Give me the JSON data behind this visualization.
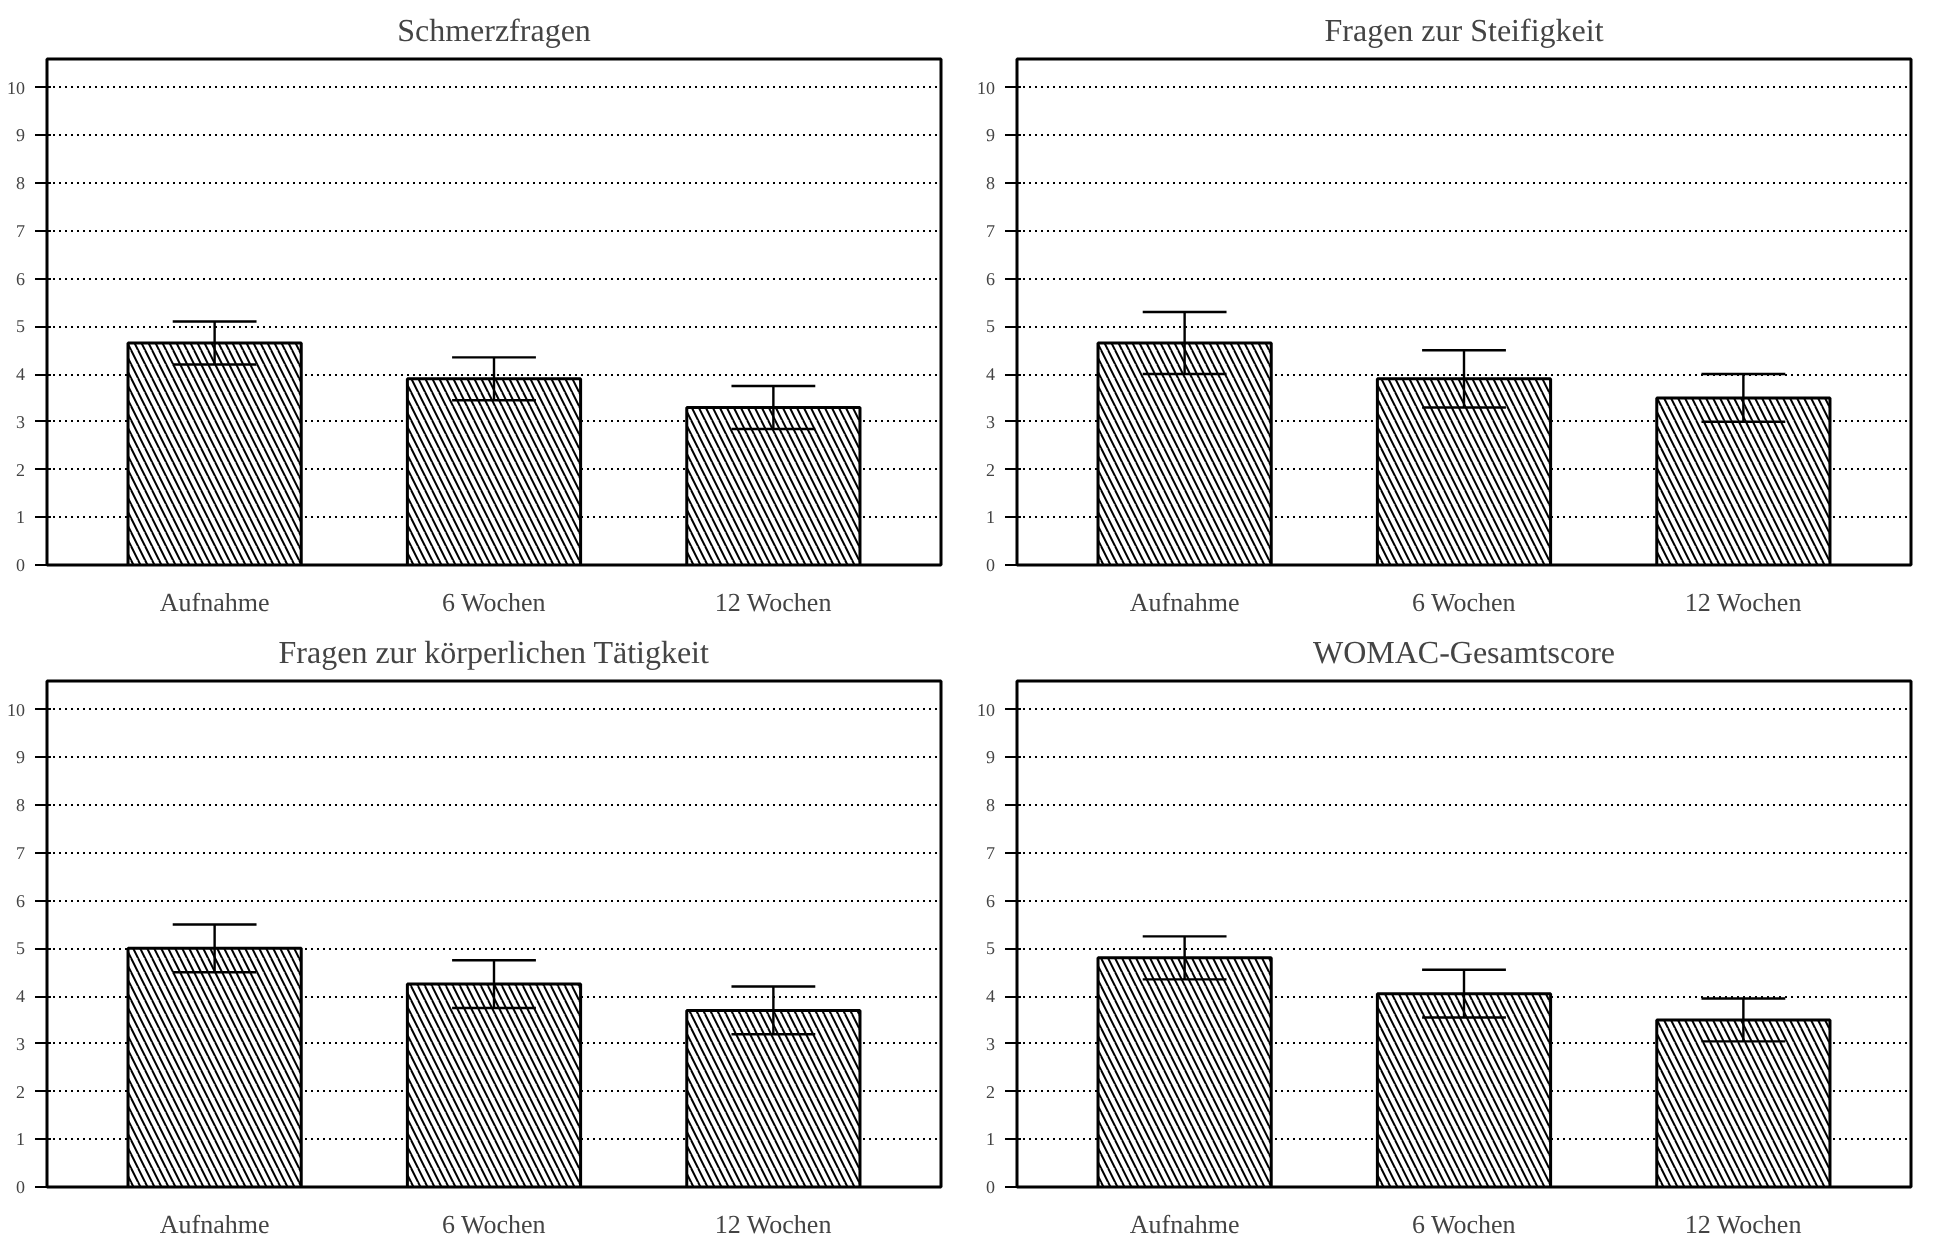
{
  "chart_data": [
    {
      "type": "bar",
      "title": "Schmerzfragen",
      "categories": [
        "Aufnahme",
        "6 Wochen",
        "12 Wochen"
      ],
      "values": [
        4.65,
        3.9,
        3.3
      ],
      "errors": [
        0.45,
        0.45,
        0.45
      ],
      "color": "#000000",
      "ylim": [
        0,
        10.6
      ],
      "yticks": [
        0,
        1,
        2,
        3,
        4,
        5,
        6,
        7,
        8,
        9,
        10
      ],
      "grid": "y",
      "legend": false
    },
    {
      "type": "bar",
      "title": "Fragen zur Steifigkeit",
      "categories": [
        "Aufnahme",
        "6 Wochen",
        "12 Wochen"
      ],
      "values": [
        4.65,
        3.9,
        3.5
      ],
      "errors": [
        0.65,
        0.6,
        0.5
      ],
      "color": "#000000",
      "ylim": [
        0,
        10.6
      ],
      "yticks": [
        0,
        1,
        2,
        3,
        4,
        5,
        6,
        7,
        8,
        9,
        10
      ],
      "grid": "y",
      "legend": false
    },
    {
      "type": "bar",
      "title": "Fragen zur körperlichen Tätigkeit",
      "categories": [
        "Aufnahme",
        "6 Wochen",
        "12 Wochen"
      ],
      "values": [
        5.0,
        4.25,
        3.7
      ],
      "errors": [
        0.5,
        0.5,
        0.5
      ],
      "color": "#000000",
      "ylim": [
        0,
        10.6
      ],
      "yticks": [
        0,
        1,
        2,
        3,
        4,
        5,
        6,
        7,
        8,
        9,
        10
      ],
      "grid": "y",
      "legend": false
    },
    {
      "type": "bar",
      "title": "WOMAC-Gesamtscore",
      "categories": [
        "Aufnahme",
        "6 Wochen",
        "12 Wochen"
      ],
      "values": [
        4.8,
        4.05,
        3.5
      ],
      "errors": [
        0.45,
        0.5,
        0.45
      ],
      "color": "#000000",
      "ylim": [
        0,
        10.6
      ],
      "yticks": [
        0,
        1,
        2,
        3,
        4,
        5,
        6,
        7,
        8,
        9,
        10
      ],
      "grid": "y",
      "legend": false
    }
  ]
}
